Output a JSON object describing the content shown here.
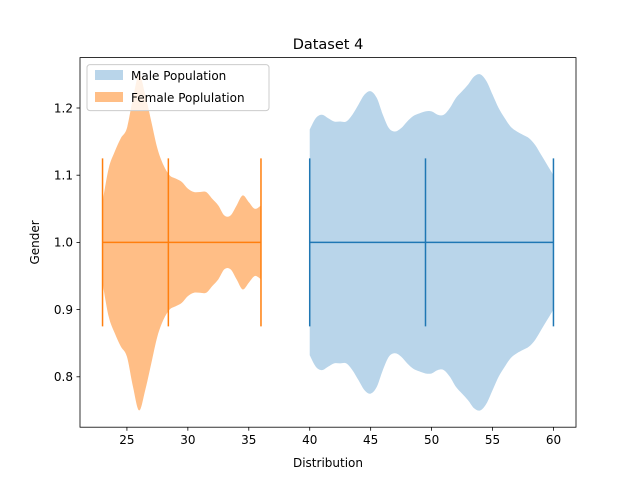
{
  "chart_data": {
    "type": "violin",
    "title": "Dataset 4",
    "xlabel": "Distribution",
    "ylabel": "Gender",
    "xlim": [
      21.15,
      61.85
    ],
    "ylim": [
      0.725,
      1.275
    ],
    "x_ticks": [
      25,
      30,
      35,
      40,
      45,
      50,
      55,
      60
    ],
    "y_ticks": [
      0.8,
      0.9,
      1.0,
      1.1,
      1.2
    ],
    "x_tick_labels": [
      "25",
      "30",
      "35",
      "40",
      "45",
      "50",
      "55",
      "60"
    ],
    "y_tick_labels": [
      "0.8",
      "0.9",
      "1.0",
      "1.1",
      "1.2"
    ],
    "legend_position": "upper-left",
    "grid": false,
    "series": [
      {
        "name": "Female Poplulation",
        "fill_color": "#ffbe86",
        "line_color": "#ff7f0e",
        "position": 1.0,
        "min": 23.0,
        "median": 28.4,
        "max": 36.0,
        "bar_half_height": 0.125,
        "profile": [
          [
            23.0,
            0.06
          ],
          [
            23.5,
            0.11
          ],
          [
            24.0,
            0.135
          ],
          [
            24.5,
            0.155
          ],
          [
            25.0,
            0.17
          ],
          [
            25.5,
            0.215
          ],
          [
            26.0,
            0.25
          ],
          [
            26.5,
            0.22
          ],
          [
            27.0,
            0.18
          ],
          [
            27.5,
            0.14
          ],
          [
            28.0,
            0.115
          ],
          [
            28.5,
            0.1
          ],
          [
            29.0,
            0.095
          ],
          [
            29.5,
            0.09
          ],
          [
            30.0,
            0.08
          ],
          [
            30.5,
            0.075
          ],
          [
            31.0,
            0.075
          ],
          [
            31.5,
            0.075
          ],
          [
            32.0,
            0.065
          ],
          [
            32.5,
            0.055
          ],
          [
            33.0,
            0.04
          ],
          [
            33.5,
            0.04
          ],
          [
            34.0,
            0.055
          ],
          [
            34.5,
            0.07
          ],
          [
            35.0,
            0.06
          ],
          [
            35.5,
            0.05
          ],
          [
            36.0,
            0.055
          ]
        ]
      },
      {
        "name": "Male Population",
        "fill_color": "#b9d5ea",
        "line_color": "#1f77b4",
        "position": 1.0,
        "min": 40.0,
        "median": 49.5,
        "max": 60.0,
        "bar_half_height": 0.125,
        "profile": [
          [
            40.0,
            0.168
          ],
          [
            40.5,
            0.185
          ],
          [
            41.0,
            0.19
          ],
          [
            41.5,
            0.185
          ],
          [
            42.0,
            0.18
          ],
          [
            42.5,
            0.18
          ],
          [
            43.0,
            0.18
          ],
          [
            43.5,
            0.19
          ],
          [
            44.0,
            0.205
          ],
          [
            44.5,
            0.22
          ],
          [
            45.0,
            0.225
          ],
          [
            45.5,
            0.215
          ],
          [
            46.0,
            0.19
          ],
          [
            46.5,
            0.17
          ],
          [
            47.0,
            0.165
          ],
          [
            47.5,
            0.17
          ],
          [
            48.0,
            0.18
          ],
          [
            48.5,
            0.188
          ],
          [
            49.0,
            0.192
          ],
          [
            49.5,
            0.195
          ],
          [
            50.0,
            0.195
          ],
          [
            50.5,
            0.19
          ],
          [
            51.0,
            0.19
          ],
          [
            51.5,
            0.2
          ],
          [
            52.0,
            0.215
          ],
          [
            52.5,
            0.225
          ],
          [
            53.0,
            0.235
          ],
          [
            53.5,
            0.247
          ],
          [
            54.0,
            0.25
          ],
          [
            54.5,
            0.24
          ],
          [
            55.0,
            0.22
          ],
          [
            55.5,
            0.2
          ],
          [
            56.0,
            0.185
          ],
          [
            56.5,
            0.172
          ],
          [
            57.0,
            0.165
          ],
          [
            57.5,
            0.16
          ],
          [
            58.0,
            0.155
          ],
          [
            58.5,
            0.145
          ],
          [
            59.0,
            0.13
          ],
          [
            59.5,
            0.115
          ],
          [
            60.0,
            0.1
          ]
        ]
      }
    ]
  }
}
